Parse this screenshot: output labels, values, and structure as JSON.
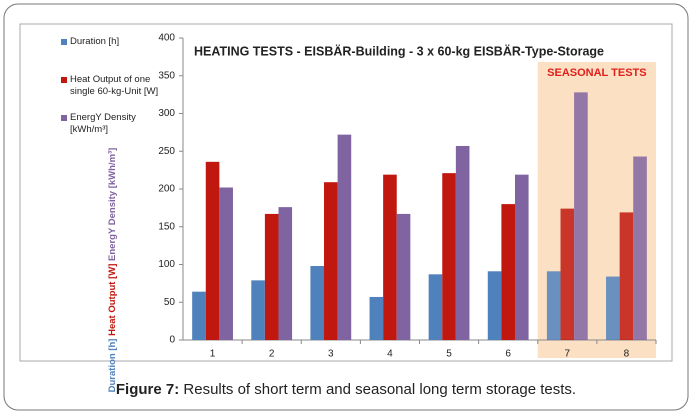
{
  "chart_data": {
    "type": "bar",
    "title": "HEATING TESTS - EISBÄR-Building - 3 x 60-kg EISBÄR-Type-Storage",
    "categories": [
      "1",
      "2",
      "3",
      "4",
      "5",
      "6",
      "7",
      "8"
    ],
    "series": [
      {
        "name": "Duration [h]",
        "color": "#4f81bd",
        "values": [
          64,
          79,
          98,
          57,
          87,
          91,
          91,
          84
        ]
      },
      {
        "name": "Heat Output of one single 60-kg-Unit [W]",
        "color": "#c0180e",
        "values": [
          236,
          167,
          209,
          219,
          221,
          180,
          174,
          169
        ]
      },
      {
        "name": "EnergY Density [kWh/m³]",
        "color": "#8064a2",
        "values": [
          202,
          176,
          272,
          167,
          257,
          219,
          328,
          243
        ]
      }
    ],
    "ylabel": [
      "Duration [h]",
      "Heat Output [W]",
      "EnergY Density [kWh/m³]"
    ],
    "ylim": [
      0,
      400
    ],
    "yticks": [
      0,
      50,
      100,
      150,
      200,
      250,
      300,
      350,
      400
    ],
    "shaded_region": {
      "label": "SEASONAL TESTS",
      "categories": [
        "7",
        "8"
      ],
      "color": "#fbe0c4"
    },
    "caption": {
      "label": "Figure 7:",
      "text": "Results of short term and seasonal long term storage tests."
    }
  }
}
